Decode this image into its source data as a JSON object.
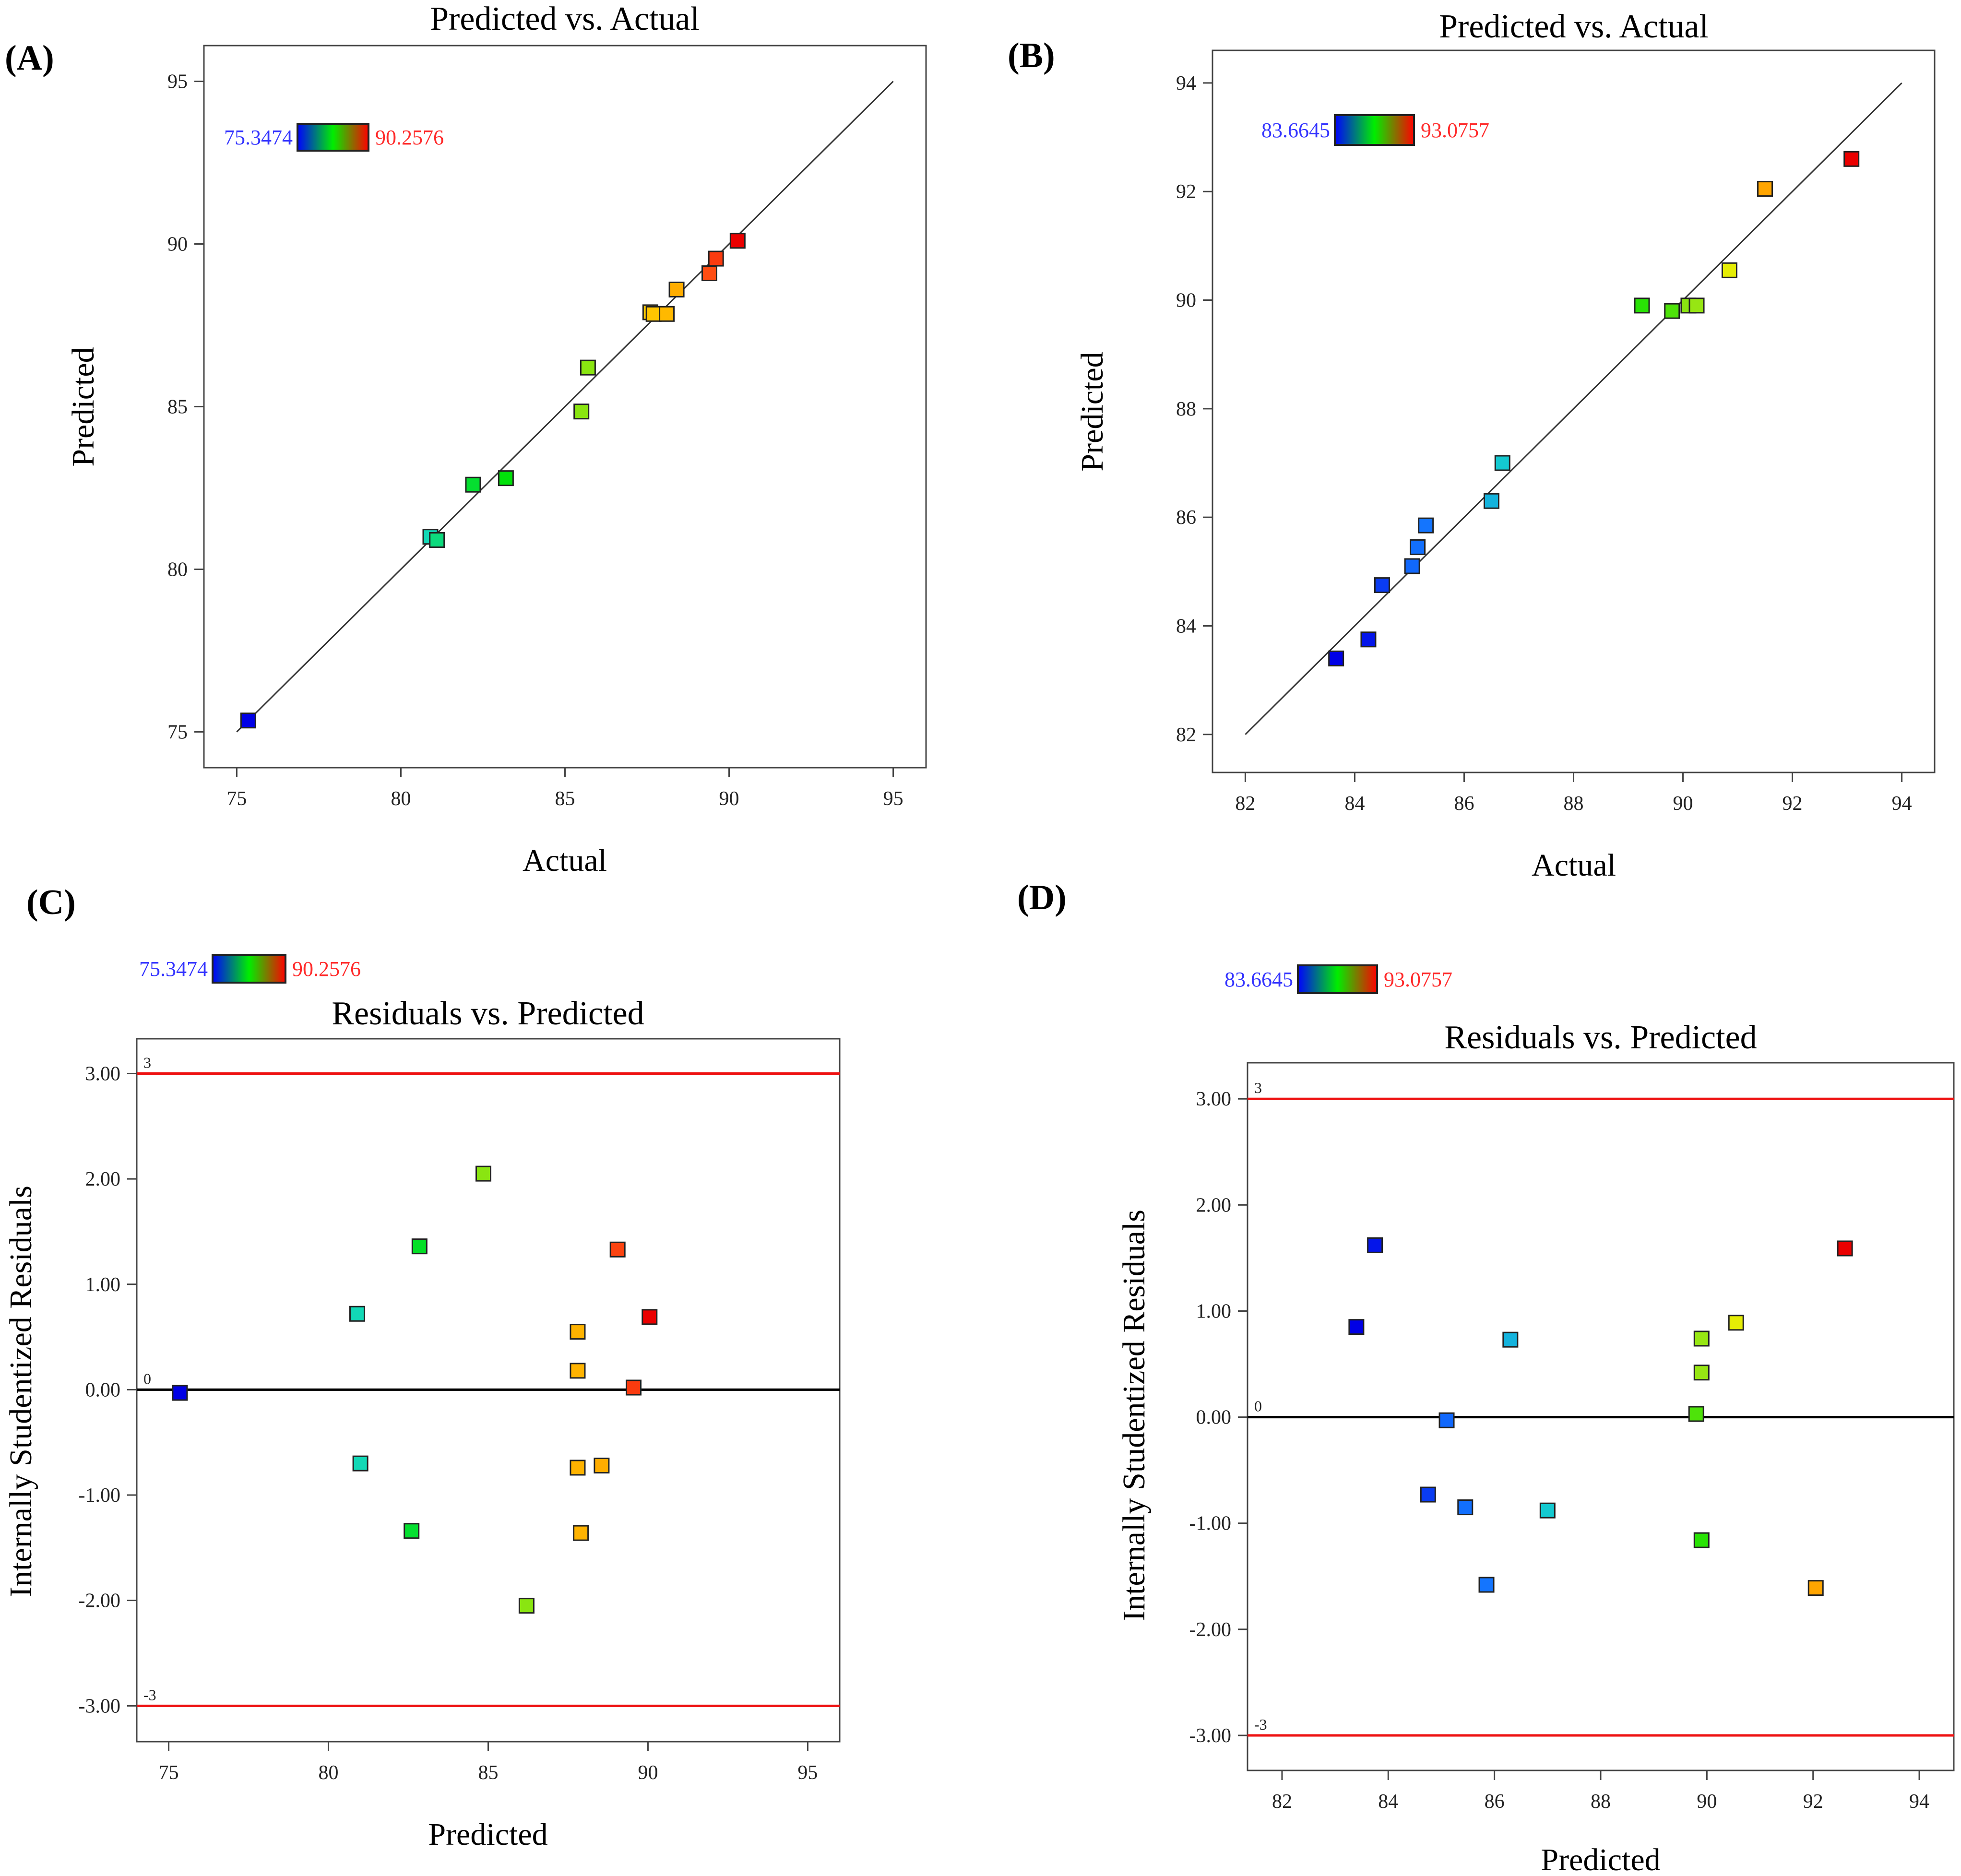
{
  "figure": {
    "panels": [
      "(A)",
      "(B)",
      "(C)",
      "(D)"
    ]
  },
  "chart_data": [
    {
      "id": "A",
      "panel_label": "(A)",
      "type": "scatter",
      "title": "Predicted vs. Actual",
      "xlabel": "Actual",
      "ylabel": "Predicted",
      "xlim": [
        74,
        96
      ],
      "ylim": [
        73.9,
        96.1
      ],
      "xticks": [
        75,
        80,
        85,
        90,
        95
      ],
      "yticks": [
        75,
        80,
        85,
        90,
        95
      ],
      "ytick_labels": [
        "75",
        "80",
        "85",
        "90",
        "95"
      ],
      "reference_line": {
        "kind": "diagonal",
        "from": [
          75,
          75
        ],
        "to": [
          95,
          95
        ]
      },
      "color_range": {
        "min": 75.3474,
        "max": 90.2576,
        "min_label": "75.3474",
        "max_label": "90.2576",
        "min_color": "#3333ff",
        "max_color": "#ff2a2a"
      },
      "points": [
        {
          "x": 75.35,
          "y": 75.35,
          "c": 75.35
        },
        {
          "x": 80.9,
          "y": 81.0,
          "c": 81.2
        },
        {
          "x": 81.1,
          "y": 80.9,
          "c": 81.8
        },
        {
          "x": 82.2,
          "y": 82.6,
          "c": 82.6
        },
        {
          "x": 83.2,
          "y": 82.8,
          "c": 83.0
        },
        {
          "x": 85.5,
          "y": 84.85,
          "c": 84.9
        },
        {
          "x": 85.7,
          "y": 86.2,
          "c": 84.9
        },
        {
          "x": 87.6,
          "y": 87.9,
          "c": 87.6
        },
        {
          "x": 87.7,
          "y": 87.85,
          "c": 87.7
        },
        {
          "x": 88.1,
          "y": 87.85,
          "c": 87.9
        },
        {
          "x": 88.4,
          "y": 88.6,
          "c": 88.1
        },
        {
          "x": 89.4,
          "y": 89.1,
          "c": 89.4
        },
        {
          "x": 89.6,
          "y": 89.55,
          "c": 89.6
        },
        {
          "x": 90.26,
          "y": 90.1,
          "c": 90.26
        }
      ]
    },
    {
      "id": "B",
      "panel_label": "(B)",
      "type": "scatter",
      "title": "Predicted vs. Actual",
      "xlabel": "Actual",
      "ylabel": "Predicted",
      "xlim": [
        81.4,
        94.6
      ],
      "ylim": [
        81.3,
        94.6
      ],
      "xticks": [
        82,
        84,
        86,
        88,
        90,
        92,
        94
      ],
      "yticks": [
        82,
        84,
        86,
        88,
        90,
        92,
        94
      ],
      "ytick_labels": [
        "82",
        "84",
        "86",
        "88",
        "90",
        "92",
        "94"
      ],
      "reference_line": {
        "kind": "diagonal",
        "from": [
          82,
          82
        ],
        "to": [
          94,
          94
        ]
      },
      "color_range": {
        "min": 83.6645,
        "max": 93.0757,
        "min_label": "83.6645",
        "max_label": "93.0757",
        "min_color": "#3333ff",
        "max_color": "#ff2a2a"
      },
      "points": [
        {
          "x": 83.66,
          "y": 83.4,
          "c": 83.66
        },
        {
          "x": 84.25,
          "y": 83.75,
          "c": 84.0
        },
        {
          "x": 84.5,
          "y": 84.75,
          "c": 84.6
        },
        {
          "x": 85.05,
          "y": 85.1,
          "c": 85.3
        },
        {
          "x": 85.15,
          "y": 85.45,
          "c": 85.4
        },
        {
          "x": 85.3,
          "y": 85.85,
          "c": 85.5
        },
        {
          "x": 86.5,
          "y": 86.3,
          "c": 86.6
        },
        {
          "x": 86.7,
          "y": 87.0,
          "c": 87.0
        },
        {
          "x": 89.25,
          "y": 89.9,
          "c": 88.9
        },
        {
          "x": 89.8,
          "y": 89.8,
          "c": 89.2
        },
        {
          "x": 90.1,
          "y": 89.9,
          "c": 89.7
        },
        {
          "x": 90.25,
          "y": 89.9,
          "c": 89.8
        },
        {
          "x": 90.85,
          "y": 90.55,
          "c": 90.7
        },
        {
          "x": 91.5,
          "y": 92.05,
          "c": 91.8
        },
        {
          "x": 93.08,
          "y": 92.6,
          "c": 93.08
        }
      ]
    },
    {
      "id": "C",
      "panel_label": "(C)",
      "type": "scatter",
      "title": "Residuals vs. Predicted",
      "xlabel": "Predicted",
      "ylabel": "Internally Studentized Residuals",
      "xlim": [
        74,
        96
      ],
      "ylim": [
        -3.34,
        3.33
      ],
      "xticks": [
        75,
        80,
        85,
        90,
        95
      ],
      "yticks": [
        -3,
        -2,
        -1,
        0,
        1,
        2,
        3
      ],
      "ytick_labels": [
        "-3.00",
        "-2.00",
        "-1.00",
        "0.00",
        "1.00",
        "2.00",
        "3.00"
      ],
      "reference_lines": [
        {
          "y": 3,
          "label": "3",
          "color": "#ee1111"
        },
        {
          "y": 0,
          "label": "0",
          "color": "#000000"
        },
        {
          "y": -3,
          "label": "-3",
          "color": "#ee1111"
        }
      ],
      "color_range": {
        "min": 75.3474,
        "max": 90.2576,
        "min_label": "75.3474",
        "max_label": "90.2576",
        "min_color": "#3333ff",
        "max_color": "#ff2a2a"
      },
      "points": [
        {
          "x": 75.35,
          "y": -0.03,
          "c": 75.35
        },
        {
          "x": 80.9,
          "y": 0.72,
          "c": 81.2
        },
        {
          "x": 81.0,
          "y": -0.7,
          "c": 81.2
        },
        {
          "x": 82.6,
          "y": -1.34,
          "c": 82.6
        },
        {
          "x": 82.85,
          "y": 1.36,
          "c": 82.7
        },
        {
          "x": 84.85,
          "y": 2.05,
          "c": 84.9
        },
        {
          "x": 86.2,
          "y": -2.05,
          "c": 84.9
        },
        {
          "x": 87.8,
          "y": 0.55,
          "c": 88.0
        },
        {
          "x": 87.8,
          "y": 0.18,
          "c": 88.0
        },
        {
          "x": 87.8,
          "y": -0.74,
          "c": 88.0
        },
        {
          "x": 87.9,
          "y": -1.36,
          "c": 88.0
        },
        {
          "x": 88.55,
          "y": -0.72,
          "c": 88.1
        },
        {
          "x": 89.05,
          "y": 1.33,
          "c": 89.5
        },
        {
          "x": 89.55,
          "y": 0.02,
          "c": 89.6
        },
        {
          "x": 90.05,
          "y": 0.69,
          "c": 90.26
        }
      ]
    },
    {
      "id": "D",
      "panel_label": "(D)",
      "type": "scatter",
      "title": "Residuals vs. Predicted",
      "xlabel": "Predicted",
      "ylabel": "Internally Studentized Residuals",
      "xlim": [
        81.35,
        94.65
      ],
      "ylim": [
        -3.33,
        3.34
      ],
      "xticks": [
        82,
        84,
        86,
        88,
        90,
        92,
        94
      ],
      "yticks": [
        -3,
        -2,
        -1,
        0,
        1,
        2,
        3
      ],
      "ytick_labels": [
        "-3.00",
        "-2.00",
        "-1.00",
        "0.00",
        "1.00",
        "2.00",
        "3.00"
      ],
      "reference_lines": [
        {
          "y": 3,
          "label": "3",
          "color": "#ee1111"
        },
        {
          "y": 0,
          "label": "0",
          "color": "#000000"
        },
        {
          "y": -3,
          "label": "-3",
          "color": "#ee1111"
        }
      ],
      "color_range": {
        "min": 83.6645,
        "max": 93.0757,
        "min_label": "83.6645",
        "max_label": "93.0757",
        "min_color": "#3333ff",
        "max_color": "#ff2a2a"
      },
      "points": [
        {
          "x": 83.4,
          "y": 0.85,
          "c": 83.66
        },
        {
          "x": 83.75,
          "y": 1.62,
          "c": 84.0
        },
        {
          "x": 84.75,
          "y": -0.73,
          "c": 84.6
        },
        {
          "x": 85.1,
          "y": -0.03,
          "c": 85.3
        },
        {
          "x": 85.45,
          "y": -0.85,
          "c": 85.4
        },
        {
          "x": 85.85,
          "y": -1.58,
          "c": 85.5
        },
        {
          "x": 86.3,
          "y": 0.73,
          "c": 86.6
        },
        {
          "x": 87.0,
          "y": -0.88,
          "c": 87.0
        },
        {
          "x": 89.8,
          "y": 0.03,
          "c": 89.2
        },
        {
          "x": 89.9,
          "y": -1.16,
          "c": 88.9
        },
        {
          "x": 89.9,
          "y": 0.42,
          "c": 89.8
        },
        {
          "x": 89.9,
          "y": 0.74,
          "c": 89.8
        },
        {
          "x": 90.55,
          "y": 0.89,
          "c": 90.7
        },
        {
          "x": 92.05,
          "y": -1.61,
          "c": 91.8
        },
        {
          "x": 92.6,
          "y": 1.59,
          "c": 93.08
        }
      ]
    }
  ]
}
